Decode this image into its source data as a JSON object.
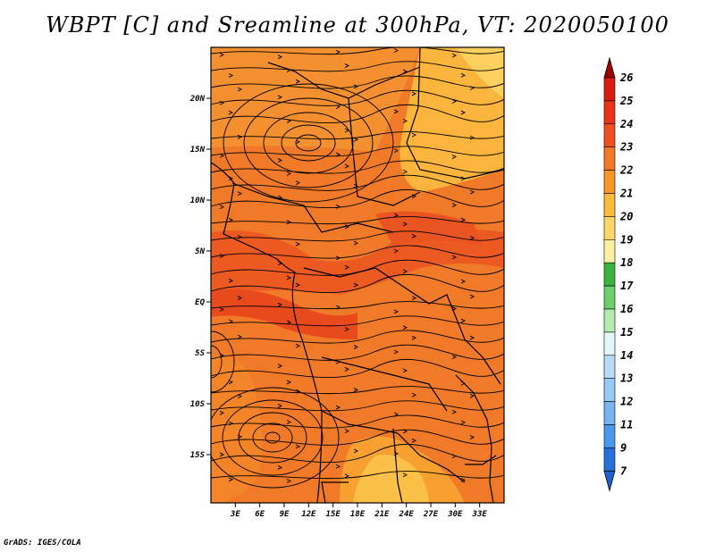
{
  "title": "WBPT [C] and Sreamline at 300hPa, VT: 2020050100",
  "credit": "GrADS: IGES/COLA",
  "lat_axis": {
    "ticks": [
      {
        "value": 20,
        "label": "20N"
      },
      {
        "value": 15,
        "label": "15N"
      },
      {
        "value": 10,
        "label": "10N"
      },
      {
        "value": 5,
        "label": "5N"
      },
      {
        "value": 0,
        "label": "EQ"
      },
      {
        "value": -5,
        "label": "5S"
      },
      {
        "value": -10,
        "label": "10S"
      },
      {
        "value": -15,
        "label": "15S"
      }
    ]
  },
  "lon_axis": {
    "ticks": [
      {
        "value": 3,
        "label": "3E"
      },
      {
        "value": 6,
        "label": "6E"
      },
      {
        "value": 9,
        "label": "9E"
      },
      {
        "value": 12,
        "label": "12E"
      },
      {
        "value": 15,
        "label": "15E"
      },
      {
        "value": 18,
        "label": "18E"
      },
      {
        "value": 21,
        "label": "21E"
      },
      {
        "value": 24,
        "label": "24E"
      },
      {
        "value": 27,
        "label": "27E"
      },
      {
        "value": 30,
        "label": "30E"
      },
      {
        "value": 33,
        "label": "33E"
      }
    ]
  },
  "colorbar": {
    "levels": [
      {
        "label": "26",
        "color": "#c00000"
      },
      {
        "label": "25",
        "color": "#d81c10"
      },
      {
        "label": "24",
        "color": "#e83418"
      },
      {
        "label": "23",
        "color": "#f05020"
      },
      {
        "label": "22",
        "color": "#f47828"
      },
      {
        "label": "21",
        "color": "#f89828"
      },
      {
        "label": "20",
        "color": "#fbbc3c"
      },
      {
        "label": "19",
        "color": "#fdd868"
      },
      {
        "label": "18",
        "color": "#fef0a0"
      },
      {
        "label": "17",
        "color": "#3cb43c"
      },
      {
        "label": "16",
        "color": "#6cd06c"
      },
      {
        "label": "15",
        "color": "#b4ecb0"
      },
      {
        "label": "14",
        "color": "#e2f8f8"
      },
      {
        "label": "13",
        "color": "#b8dcf8"
      },
      {
        "label": "12",
        "color": "#96c8f8"
      },
      {
        "label": "11",
        "color": "#78b4f0"
      },
      {
        "label": "9",
        "color": "#4a98ec"
      },
      {
        "label": "7",
        "color": "#2870dc"
      }
    ],
    "top_arrow_color": "#a00000",
    "bottom_arrow_color": "#2060d0"
  }
}
